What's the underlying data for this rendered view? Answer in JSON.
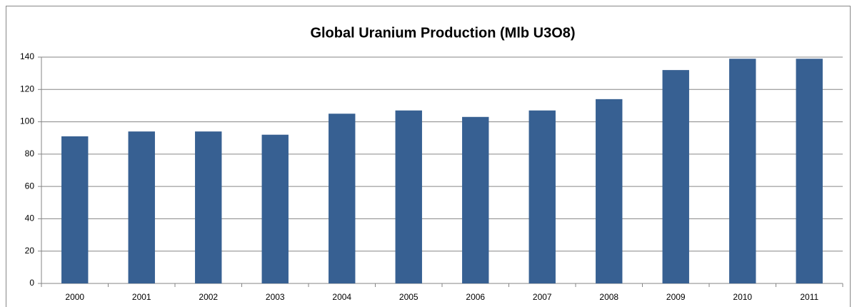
{
  "chart_data": {
    "type": "bar",
    "title": "Global Uranium Production (Mlb U3O8)",
    "categories": [
      "2000",
      "2001",
      "2002",
      "2003",
      "2004",
      "2005",
      "2006",
      "2007",
      "2008",
      "2009",
      "2010",
      "2011"
    ],
    "values": [
      91,
      94,
      94,
      92,
      105,
      107,
      103,
      107,
      114,
      132,
      139,
      139
    ],
    "color": "#376092",
    "ylim": [
      0,
      140
    ],
    "yticks": [
      0,
      20,
      40,
      60,
      80,
      100,
      120,
      140
    ],
    "grid": true
  }
}
